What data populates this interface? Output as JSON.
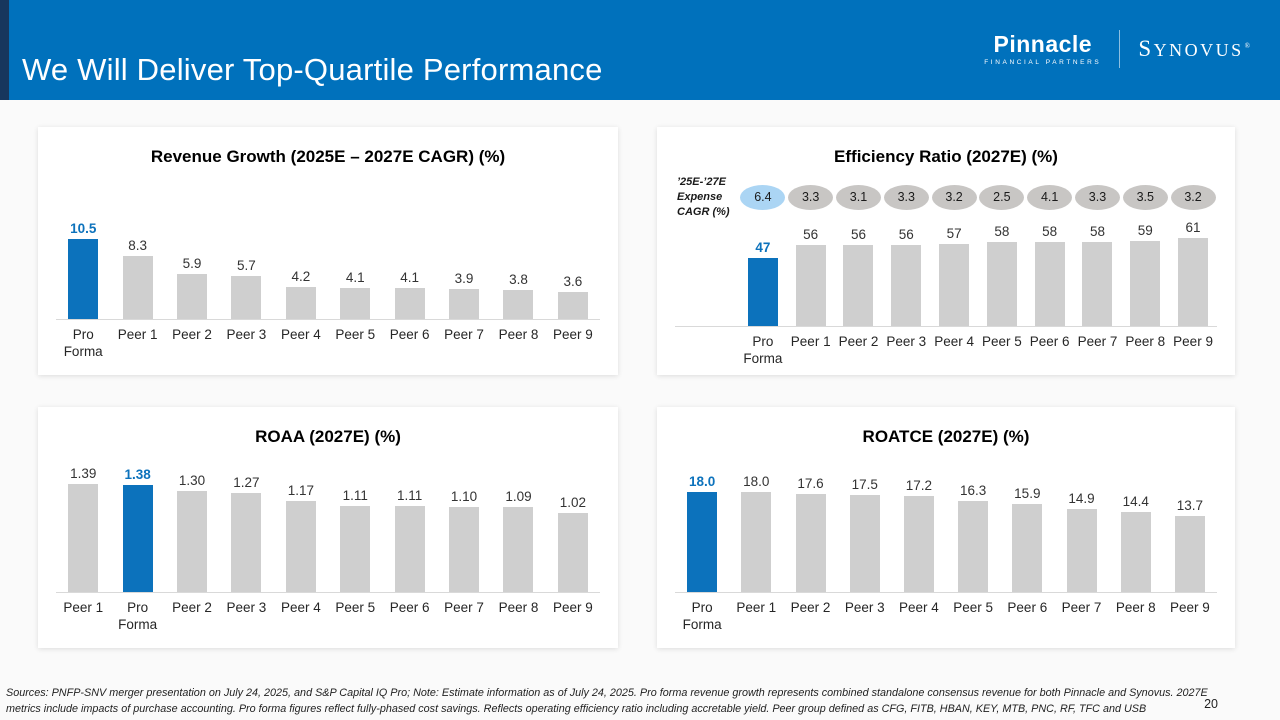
{
  "header": {
    "title": "We Will Deliver Top-Quartile Performance",
    "logo_pinnacle": "Pinnacle",
    "logo_pinnacle_sub": "FINANCIAL PARTNERS",
    "logo_synovus_first": "S",
    "logo_synovus_rest": "YNOVUS",
    "logo_synovus_reg": "®"
  },
  "colors": {
    "header_background": "#0071BC",
    "corner_strip": "#17375E",
    "highlight_bar": "#0C72BC",
    "peer_bar": "#CFCFCF",
    "bubble_gray": "#C8C6C4",
    "bubble_blue": "#ABD5F4"
  },
  "chart_data": [
    {
      "id": "revenue-growth",
      "type": "bar",
      "title": "Revenue Growth (2025E – 2027E CAGR) (%)",
      "categories": [
        "Pro Forma",
        "Peer 1",
        "Peer 2",
        "Peer 3",
        "Peer 4",
        "Peer 5",
        "Peer 6",
        "Peer 7",
        "Peer 8",
        "Peer 9"
      ],
      "values": [
        10.5,
        8.3,
        5.9,
        5.7,
        4.2,
        4.1,
        4.1,
        3.9,
        3.8,
        3.6
      ],
      "value_labels": [
        "10.5",
        "8.3",
        "5.9",
        "5.7",
        "4.2",
        "4.1",
        "4.1",
        "3.9",
        "3.8",
        "3.6"
      ],
      "highlight_index": 0,
      "ylim": [
        0,
        10.5
      ],
      "grid": false,
      "legend": "none"
    },
    {
      "id": "efficiency-ratio",
      "type": "bar",
      "title": "Efficiency Ratio (2027E) (%)",
      "categories": [
        "Pro Forma",
        "Peer 1",
        "Peer 2",
        "Peer 3",
        "Peer 4",
        "Peer 5",
        "Peer 6",
        "Peer 7",
        "Peer 8",
        "Peer 9"
      ],
      "values": [
        47,
        56,
        56,
        56,
        57,
        58,
        58,
        58,
        59,
        61
      ],
      "value_labels": [
        "47",
        "56",
        "56",
        "56",
        "57",
        "58",
        "58",
        "58",
        "59",
        "61"
      ],
      "highlight_index": 0,
      "ylim": [
        0,
        61
      ],
      "grid": false,
      "legend": "none",
      "annotation_row": {
        "label": "’25E-’27E Expense CAGR (%)",
        "values": [
          "6.4",
          "3.3",
          "3.1",
          "3.3",
          "3.2",
          "2.5",
          "4.1",
          "3.3",
          "3.5",
          "3.2"
        ],
        "highlight_index": 0
      }
    },
    {
      "id": "roaa",
      "type": "bar",
      "title": "ROAA (2027E) (%)",
      "categories": [
        "Peer 1",
        "Pro Forma",
        "Peer 2",
        "Peer 3",
        "Peer 4",
        "Peer 5",
        "Peer 6",
        "Peer 7",
        "Peer 8",
        "Peer 9"
      ],
      "values": [
        1.39,
        1.38,
        1.3,
        1.27,
        1.17,
        1.11,
        1.11,
        1.1,
        1.09,
        1.02
      ],
      "value_labels": [
        "1.39",
        "1.38",
        "1.30",
        "1.27",
        "1.17",
        "1.11",
        "1.11",
        "1.10",
        "1.09",
        "1.02"
      ],
      "highlight_index": 1,
      "ylim": [
        0,
        1.39
      ],
      "grid": false,
      "legend": "none"
    },
    {
      "id": "roatce",
      "type": "bar",
      "title": "ROATCE (2027E) (%)",
      "categories": [
        "Pro Forma",
        "Peer 1",
        "Peer 2",
        "Peer 3",
        "Peer 4",
        "Peer 5",
        "Peer 6",
        "Peer 7",
        "Peer 8",
        "Peer 9"
      ],
      "values": [
        18.0,
        18.0,
        17.6,
        17.5,
        17.2,
        16.3,
        15.9,
        14.9,
        14.4,
        13.7
      ],
      "value_labels": [
        "18.0",
        "18.0",
        "17.6",
        "17.5",
        "17.2",
        "16.3",
        "15.9",
        "14.9",
        "14.4",
        "13.7"
      ],
      "highlight_index": 0,
      "ylim": [
        0,
        18
      ],
      "grid": false,
      "legend": "none"
    }
  ],
  "footer": {
    "sources": "Sources: PNFP-SNV merger presentation on July 24, 2025, and S&P Capital IQ Pro; Note: Estimate information as of July 24, 2025. Pro forma revenue growth represents combined standalone consensus revenue for both Pinnacle and Synovus. 2027E metrics include impacts of purchase accounting. Pro forma figures reflect fully-phased cost savings. Reflects operating efficiency ratio including accretable yield.  Peer group defined as CFG, FITB, HBAN, KEY, MTB, PNC, RF, TFC and USB",
    "page_number": "20"
  }
}
